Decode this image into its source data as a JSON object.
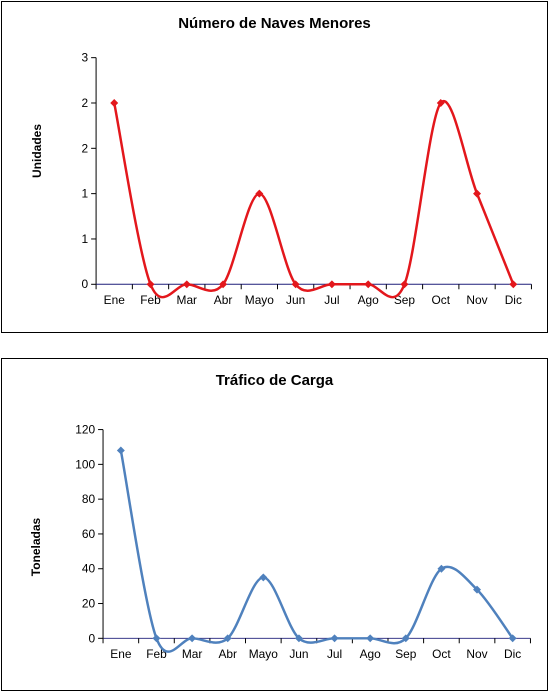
{
  "chart_data": [
    {
      "type": "line",
      "title": "Número de Naves Menores",
      "xlabel": "",
      "ylabel": "Unidades",
      "categories": [
        "Ene",
        "Feb",
        "Mar",
        "Abr",
        "Mayo",
        "Jun",
        "Jul",
        "Ago",
        "Sep",
        "Oct",
        "Nov",
        "Dic"
      ],
      "values": [
        2,
        0,
        0,
        0,
        1,
        0,
        0,
        0,
        0,
        2,
        1,
        0
      ],
      "ytick_labels": [
        "0",
        "1",
        "1",
        "2",
        "2",
        "3"
      ],
      "ylim": [
        0,
        2.5
      ],
      "smooth": true,
      "color": "#e3171c",
      "marker": "diamond",
      "grid": false,
      "legend": "none"
    },
    {
      "type": "line",
      "title": "Tráfico de Carga",
      "xlabel": "",
      "ylabel": "Toneladas",
      "categories": [
        "Ene",
        "Feb",
        "Mar",
        "Abr",
        "Mayo",
        "Jun",
        "Jul",
        "Ago",
        "Sep",
        "Oct",
        "Nov",
        "Dic"
      ],
      "values": [
        108,
        0,
        0,
        0,
        35,
        0,
        0,
        0,
        0,
        40,
        28,
        0
      ],
      "ytick_labels": [
        "0",
        "20",
        "40",
        "60",
        "80",
        "100",
        "120"
      ],
      "ylim": [
        0,
        120
      ],
      "smooth": true,
      "color": "#4f81bd",
      "marker": "diamond",
      "grid": false,
      "legend": "none"
    }
  ]
}
